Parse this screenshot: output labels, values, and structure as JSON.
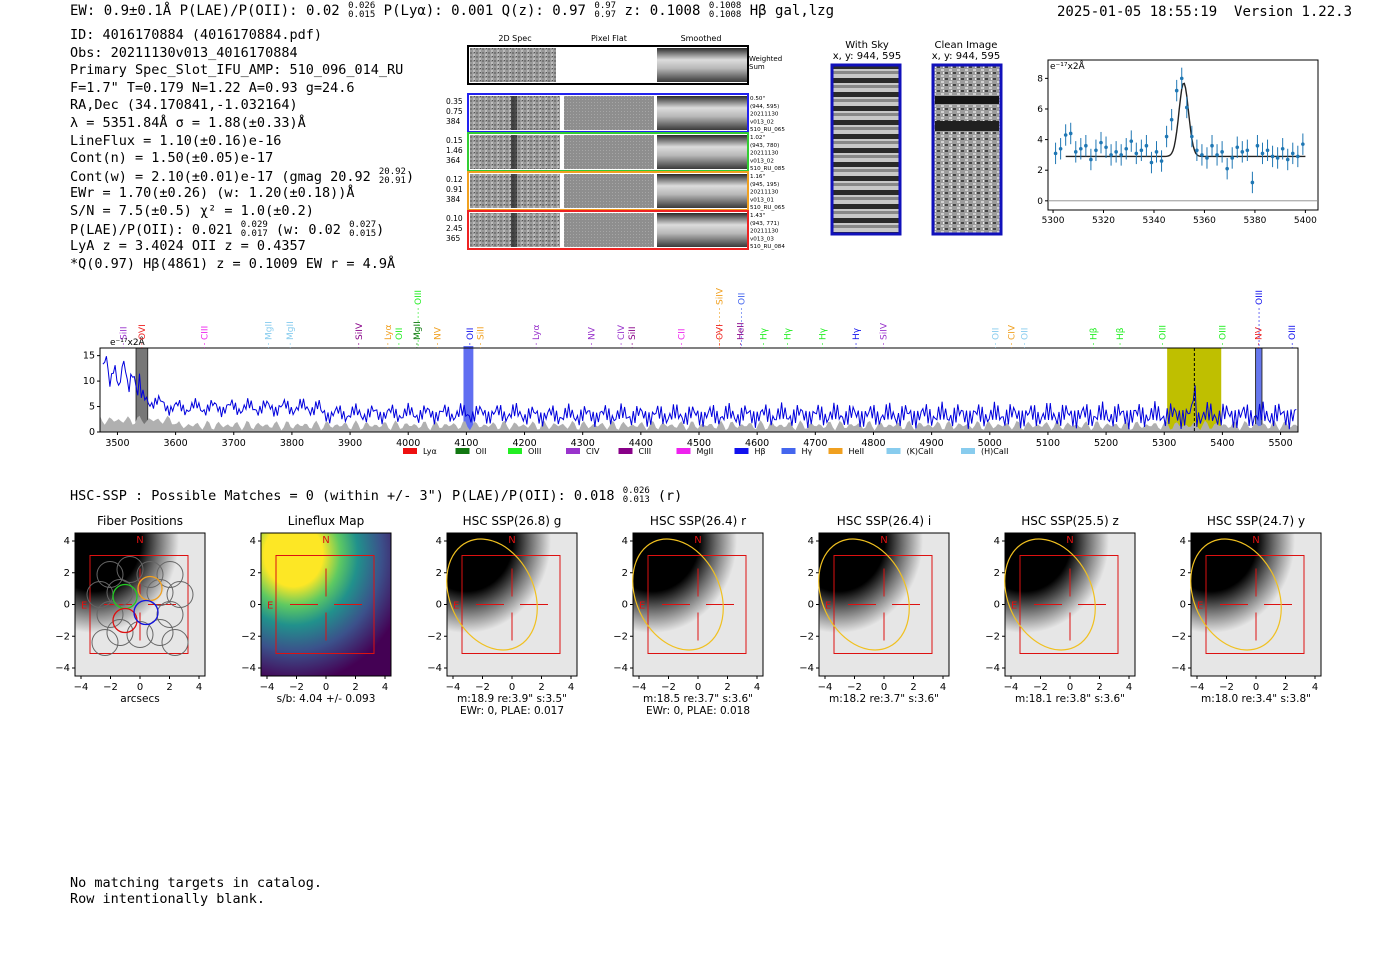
{
  "header": {
    "left": "EW: 0.9±0.1Å  P(LAE)/P(OII): 0.02 ",
    "plae_hi": "0.026",
    "plae_lo": "0.015",
    "plya": "  P(Lyα): 0.001  Q(z): 0.97 ",
    "qz_hi": "0.97",
    "qz_lo": "0.97",
    "z_label": "  z: 0.1008 ",
    "z_hi": "0.1008",
    "z_lo": "0.1008",
    "line_tag": " Hβ  gal,lzg",
    "timestamp": "2025-01-05 18:55:19",
    "version": "Version 1.22.3"
  },
  "info": {
    "id": "ID: 4016170884 (4016170884.pdf)",
    "obs": "Obs: 20211130v013_4016170884",
    "primary": "Primary Spec_Slot_IFU_AMP: 510_096_014_RU",
    "fit": "F=1.7\"  T=0.179  N=1.22  A=0.93  g=24.6",
    "radec": "RA,Dec (34.170841,-1.032164)",
    "lambda": "λ = 5351.84Å  σ = 1.88(±0.33)Å",
    "lineflux": "LineFlux = 1.10(±0.16)e-16",
    "contn": "Cont(n) = 1.50(±0.05)e-17",
    "contw": "Cont(w) = 2.10(±0.01)e-17 (gmag 20.92 ",
    "contw_hi": "20.92",
    "contw_lo": "20.91",
    "contw_end": ")",
    "ewr": "EWr = 1.70(±0.26) (w: 1.20(±0.18))Å",
    "sn": "S/N = 7.5(±0.5)  χ² = 1.0(±0.2)",
    "plae": "P(LAE)/P(OII): 0.021 ",
    "plae_hi": "0.029",
    "plae_lo": "0.017",
    "plae_mid": " (w: 0.02 ",
    "plae_w_hi": "0.027",
    "plae_w_lo": "0.015",
    "plae_end": ")",
    "lya": "LyA z = 3.4024  OII z = 0.4357",
    "q": "*Q(0.97) Hβ(4861) z = 0.1009  EW r = 4.9Å"
  },
  "cutouts": {
    "headers": [
      "2D Spec",
      "Pixel Flat",
      "Smoothed"
    ],
    "weighted_sum": [
      "Weighted",
      "Sum"
    ],
    "rows": [
      {
        "left": [
          "0.35",
          "0.75",
          "384"
        ],
        "right": [
          "0.50\"",
          "(944, 595)",
          "20211130",
          "v013_02",
          "510_RU_065"
        ],
        "color": "#2222ee"
      },
      {
        "left": [
          "0.15",
          "1.46",
          "364"
        ],
        "right": [
          "1.02\"",
          "(943, 780)",
          "20211130",
          "v013_02",
          "510_RU_085"
        ],
        "color": "#33cc33"
      },
      {
        "left": [
          "0.12",
          "0.91",
          "384"
        ],
        "right": [
          "1.16\"",
          "(945, 195)",
          "20211130",
          "v013_01",
          "510_RU_065"
        ],
        "color": "#f0a020"
      },
      {
        "left": [
          "0.10",
          "2.45",
          "365"
        ],
        "right": [
          "1.43\"",
          "(943, 771)",
          "20211130",
          "v013_03",
          "510_RU_084"
        ],
        "color": "#ee2222"
      }
    ]
  },
  "sky": {
    "title": "With Sky",
    "coords": "x, y: 944, 595"
  },
  "clean": {
    "title": "Clean Image",
    "coords": "x, y: 944, 595"
  },
  "zoom_chart": {
    "unit_label": "e⁻¹⁷x2Å",
    "xticks": [
      "5300",
      "5320",
      "5340",
      "5360",
      "5380",
      "5400"
    ],
    "yticks": [
      "0",
      "2",
      "4",
      "6",
      "8"
    ],
    "xlim": [
      5298,
      5405
    ],
    "ylim": [
      -0.6,
      9.2
    ],
    "continuum": 2.9,
    "peak_center": 5351.8,
    "peak_amp": 4.8,
    "peak_sigma": 1.9,
    "points_x": [
      5301,
      5303,
      5305,
      5307,
      5309,
      5311,
      5313,
      5315,
      5317,
      5319,
      5321,
      5323,
      5325,
      5327,
      5329,
      5331,
      5333,
      5335,
      5337,
      5339,
      5341,
      5343,
      5345,
      5347,
      5349,
      5351,
      5353,
      5355,
      5357,
      5359,
      5361,
      5363,
      5365,
      5367,
      5369,
      5371,
      5373,
      5375,
      5377,
      5379,
      5381,
      5383,
      5385,
      5387,
      5389,
      5391,
      5393,
      5395,
      5397,
      5399
    ],
    "points_y": [
      3.1,
      3.4,
      4.3,
      4.4,
      3.2,
      3.4,
      3.6,
      2.7,
      3.3,
      3.8,
      3.5,
      3.0,
      3.2,
      3.0,
      3.4,
      3.9,
      3.1,
      3.3,
      3.6,
      2.5,
      3.2,
      2.6,
      4.2,
      5.3,
      7.2,
      8.0,
      6.1,
      4.2,
      3.3,
      3.0,
      2.8,
      3.6,
      3.0,
      3.2,
      2.1,
      2.8,
      3.5,
      3.2,
      3.3,
      1.2,
      3.6,
      3.1,
      3.3,
      2.9,
      2.8,
      3.4,
      2.7,
      3.1,
      2.9,
      3.7
    ]
  },
  "spectrum": {
    "unit_label": "e⁻¹⁷x2Å",
    "xticks": [
      "3500",
      "3600",
      "3700",
      "3800",
      "3900",
      "4000",
      "4100",
      "4200",
      "4300",
      "4400",
      "4500",
      "4600",
      "4700",
      "4800",
      "4900",
      "5000",
      "5100",
      "5200",
      "5300",
      "5400",
      "5500"
    ],
    "yticks": [
      "0",
      "5",
      "10",
      "15"
    ],
    "xlim": [
      3470,
      5530
    ],
    "ylim": [
      0,
      16.5
    ],
    "highlight_range": [
      5305,
      5398
    ],
    "hb_line": 5351.8,
    "legend": [
      {
        "label": "Lyα",
        "color": "#ee1111"
      },
      {
        "label": "OII",
        "color": "#117711"
      },
      {
        "label": "OIII",
        "color": "#22ee22"
      },
      {
        "label": "CIV",
        "color": "#9933cc"
      },
      {
        "label": "CIII",
        "color": "#880088"
      },
      {
        "label": "MgII",
        "color": "#ee22ee"
      },
      {
        "label": "Hβ",
        "color": "#1111ee"
      },
      {
        "label": "Hγ",
        "color": "#4466ee"
      },
      {
        "label": "HeII",
        "color": "#f0a020"
      },
      {
        "label": "(K)CaII",
        "color": "#88ccee"
      },
      {
        "label": "(H)CaII",
        "color": "#88ccee"
      }
    ],
    "line_labels": [
      {
        "label": "SiII",
        "wave": 3510,
        "color": "#9933cc",
        "row": 1
      },
      {
        "label": "OVI",
        "wave": 3542,
        "color": "#ee2222",
        "row": 1
      },
      {
        "label": "CIII",
        "wave": 3650,
        "color": "#ee22ee",
        "row": 1
      },
      {
        "label": "MgII",
        "wave": 3760,
        "color": "#88ccee",
        "row": 1
      },
      {
        "label": "MgII",
        "wave": 3797,
        "color": "#88ccee",
        "row": 1
      },
      {
        "label": "SiIV",
        "wave": 3915,
        "color": "#880088",
        "row": 1
      },
      {
        "label": "Lyα",
        "wave": 3965,
        "color": "#f0a020",
        "row": 1
      },
      {
        "label": "OII",
        "wave": 3984,
        "color": "#22ee22",
        "row": 1
      },
      {
        "label": "MgII",
        "wave": 4015,
        "color": "#117711",
        "row": 1
      },
      {
        "label": "OIII",
        "wave": 4017,
        "color": "#22ee22",
        "row": 0
      },
      {
        "label": "NV",
        "wave": 4050,
        "color": "#f0a020",
        "row": 1
      },
      {
        "label": "OII",
        "wave": 4106,
        "color": "#1111ee",
        "row": 1
      },
      {
        "label": "SiII",
        "wave": 4124,
        "color": "#f0a020",
        "row": 1
      },
      {
        "label": "Lyα",
        "wave": 4220,
        "color": "#9933cc",
        "row": 1
      },
      {
        "label": "NV",
        "wave": 4315,
        "color": "#9933cc",
        "row": 1
      },
      {
        "label": "CIV",
        "wave": 4366,
        "color": "#9933cc",
        "row": 1
      },
      {
        "label": "SiII",
        "wave": 4385,
        "color": "#880088",
        "row": 1
      },
      {
        "label": "CII",
        "wave": 4470,
        "color": "#ee22ee",
        "row": 1
      },
      {
        "label": "SiIV",
        "wave": 4535,
        "color": "#f0a020",
        "row": 0
      },
      {
        "label": "OII",
        "wave": 4573,
        "color": "#4466ee",
        "row": 0
      },
      {
        "label": "OVI",
        "wave": 4535,
        "color": "#ee2222",
        "row": 1
      },
      {
        "label": "HeII",
        "wave": 4571,
        "color": "#880088",
        "row": 1
      },
      {
        "label": "Hγ",
        "wave": 4611,
        "color": "#22ee22",
        "row": 1
      },
      {
        "label": "Hγ",
        "wave": 4652,
        "color": "#22ee22",
        "row": 1
      },
      {
        "label": "Hγ",
        "wave": 4712,
        "color": "#22ee22",
        "row": 1
      },
      {
        "label": "Hγ",
        "wave": 4770,
        "color": "#1111ee",
        "row": 1
      },
      {
        "label": "SiIV",
        "wave": 4817,
        "color": "#9933cc",
        "row": 1
      },
      {
        "label": "OII",
        "wave": 5010,
        "color": "#88ccee",
        "row": 1
      },
      {
        "label": "CIV",
        "wave": 5037,
        "color": "#f0a020",
        "row": 1
      },
      {
        "label": "OII",
        "wave": 5060,
        "color": "#88ccee",
        "row": 1
      },
      {
        "label": "Hβ",
        "wave": 5178,
        "color": "#22ee22",
        "row": 1
      },
      {
        "label": "Hβ",
        "wave": 5224,
        "color": "#22ee22",
        "row": 1
      },
      {
        "label": "OIII",
        "wave": 5297,
        "color": "#22ee22",
        "row": 1
      },
      {
        "label": "OIII",
        "wave": 5400,
        "color": "#22ee22",
        "row": 1
      },
      {
        "label": "NV",
        "wave": 5462,
        "color": "#ee2222",
        "row": 1
      },
      {
        "label": "OIII",
        "wave": 5463,
        "color": "#1111ee",
        "row": 0
      },
      {
        "label": "OIII",
        "wave": 5520,
        "color": "#1111ee",
        "row": 1
      }
    ]
  },
  "hsc": {
    "line": "HSC-SSP : Possible Matches = 0 (within +/- 3\")  P(LAE)/P(OII): 0.018 ",
    "plae_hi": "0.026",
    "plae_lo": "0.013",
    "plae_end": " (r)"
  },
  "bottom_panels": {
    "axis_ticks": [
      "−4",
      "−2",
      "0",
      "2",
      "4"
    ],
    "n_label": "N",
    "e_label": "E",
    "panels": [
      {
        "title": "Fiber Positions",
        "captions": [
          "arcsecs"
        ]
      },
      {
        "title": "Lineflux Map",
        "captions": [
          "s/b: 4.04 +/- 0.093"
        ]
      },
      {
        "title": "HSC SSP(26.8) g",
        "captions": [
          "m:18.9  re:3.9\"  s:3.5\"",
          "EWr: 0, PLAE: 0.017"
        ]
      },
      {
        "title": "HSC SSP(26.4) r",
        "captions": [
          "m:18.5  re:3.7\"  s:3.6\"",
          "EWr: 0, PLAE: 0.018"
        ]
      },
      {
        "title": "HSC SSP(26.4) i",
        "captions": [
          "m:18.2  re:3.7\"  s:3.6\""
        ]
      },
      {
        "title": "HSC SSP(25.5) z",
        "captions": [
          "m:18.1  re:3.8\"  s:3.6\""
        ]
      },
      {
        "title": "HSC SSP(24.7) y",
        "captions": [
          "m:18.0  re:3.4\"  s:3.8\""
        ]
      }
    ]
  },
  "footer": {
    "line1": "No matching targets in catalog.",
    "line2": "Row intentionally blank."
  }
}
